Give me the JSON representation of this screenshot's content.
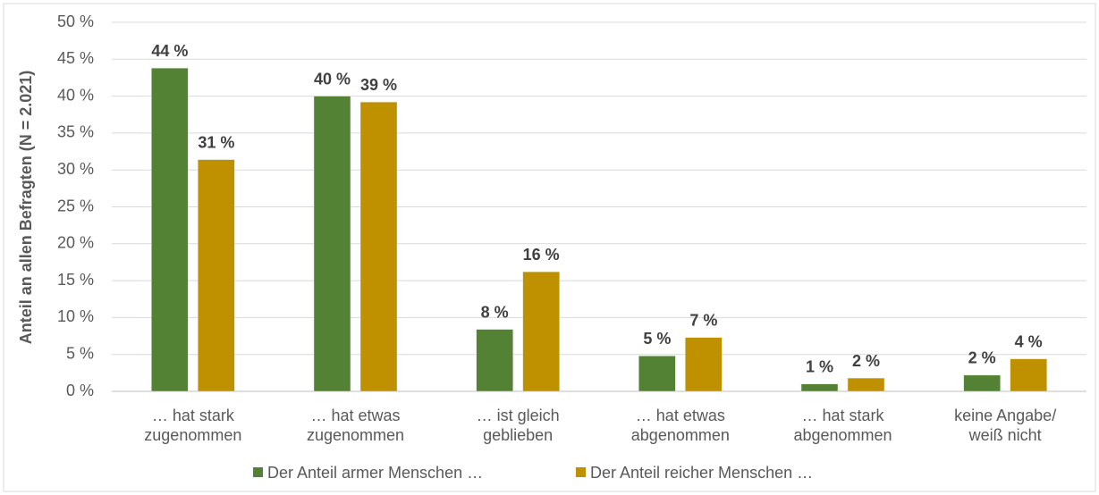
{
  "chart_data": {
    "type": "bar",
    "ylabel": "Anteil an allen Befragten (N = 2.021)",
    "categories": [
      "… hat stark\nzugenommen",
      "… hat etwas\nzugenommen",
      "… ist gleich\ngeblieben",
      "… hat etwas\nabgenommen",
      "… hat stark\nabgenommen",
      "keine Angabe/\nweiß nicht"
    ],
    "series": [
      {
        "name": "Der Anteil armer Menschen …",
        "color": "#548235",
        "values": [
          43.8,
          40,
          8.4,
          4.8,
          1,
          2.2
        ],
        "value_labels": [
          "44 %",
          "40 %",
          "8 %",
          "5 %",
          "1 %",
          "2 %"
        ]
      },
      {
        "name": "Der Anteil reicher Menschen …",
        "color": "#bf9000",
        "values": [
          31.4,
          39.2,
          16.2,
          7.3,
          1.8,
          4.4
        ],
        "value_labels": [
          "31 %",
          "39 %",
          "16 %",
          "7 %",
          "2 %",
          "4 %"
        ]
      }
    ],
    "ylim": [
      0,
      50
    ],
    "yticks": [
      {
        "value": 0,
        "label": "0 %"
      },
      {
        "value": 5,
        "label": "5 %"
      },
      {
        "value": 10,
        "label": "10 %"
      },
      {
        "value": 15,
        "label": "15 %"
      },
      {
        "value": 20,
        "label": "20 %"
      },
      {
        "value": 25,
        "label": "25 %"
      },
      {
        "value": 30,
        "label": "30 %"
      },
      {
        "value": 35,
        "label": "35 %"
      },
      {
        "value": 40,
        "label": "40 %"
      },
      {
        "value": 45,
        "label": "45 %"
      },
      {
        "value": 50,
        "label": "50 %"
      }
    ],
    "grid": true,
    "legend": "bottom"
  }
}
